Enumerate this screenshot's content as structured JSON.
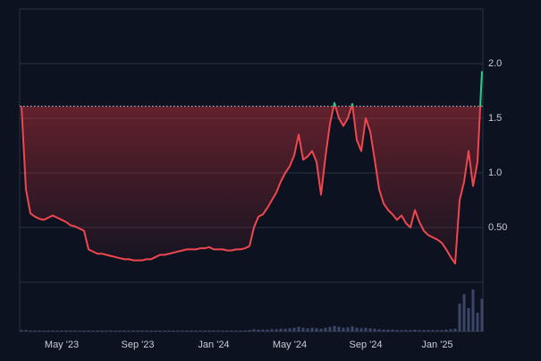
{
  "chart_data": {
    "type": "baseline",
    "categories": [
      null,
      null,
      null,
      null,
      null,
      null,
      null,
      null,
      null,
      "May '23",
      null,
      null,
      null,
      null,
      null,
      null,
      null,
      null,
      null,
      null,
      null,
      null,
      null,
      null,
      null,
      null,
      "Sep '23",
      null,
      null,
      null,
      null,
      null,
      null,
      null,
      null,
      null,
      null,
      null,
      null,
      null,
      null,
      null,
      null,
      "Jan '24",
      null,
      null,
      null,
      null,
      null,
      null,
      null,
      null,
      null,
      null,
      null,
      null,
      null,
      null,
      null,
      null,
      "May '24",
      null,
      null,
      null,
      null,
      null,
      null,
      null,
      null,
      null,
      null,
      null,
      null,
      null,
      null,
      null,
      null,
      "Sep '24",
      null,
      null,
      null,
      null,
      null,
      null,
      null,
      null,
      null,
      null,
      null,
      null,
      null,
      null,
      null,
      "Jan '25",
      null,
      null,
      null,
      null,
      null,
      null,
      null,
      null,
      null,
      null
    ],
    "values": [
      1.61,
      0.85,
      0.63,
      0.6,
      0.58,
      0.57,
      0.59,
      0.61,
      0.59,
      0.57,
      0.55,
      0.52,
      0.51,
      0.49,
      0.47,
      0.3,
      0.28,
      0.26,
      0.26,
      0.25,
      0.24,
      0.23,
      0.22,
      0.21,
      0.21,
      0.2,
      0.2,
      0.2,
      0.21,
      0.21,
      0.23,
      0.25,
      0.25,
      0.26,
      0.27,
      0.28,
      0.29,
      0.3,
      0.3,
      0.3,
      0.31,
      0.31,
      0.32,
      0.3,
      0.3,
      0.3,
      0.29,
      0.29,
      0.3,
      0.3,
      0.31,
      0.33,
      0.5,
      0.6,
      0.62,
      0.68,
      0.75,
      0.82,
      0.92,
      1.0,
      1.06,
      1.16,
      1.35,
      1.12,
      1.15,
      1.2,
      1.1,
      0.8,
      1.15,
      1.45,
      1.64,
      1.5,
      1.43,
      1.5,
      1.63,
      1.3,
      1.2,
      1.5,
      1.38,
      1.12,
      0.85,
      0.72,
      0.66,
      0.62,
      0.57,
      0.61,
      0.54,
      0.5,
      0.66,
      0.55,
      0.47,
      0.43,
      0.41,
      0.39,
      0.36,
      0.3,
      0.23,
      0.17,
      0.75,
      0.92,
      1.2,
      0.88,
      1.1,
      1.93
    ],
    "volume": [
      0.3,
      0.3,
      0.2,
      0.2,
      0.2,
      0.2,
      0.2,
      0.2,
      0.2,
      0.2,
      0.2,
      0.2,
      0.2,
      0.2,
      0.2,
      0.2,
      0.2,
      0.2,
      0.2,
      0.2,
      0.2,
      0.2,
      0.2,
      0.2,
      0.2,
      0.2,
      0.2,
      0.2,
      0.2,
      0.2,
      0.2,
      0.2,
      0.2,
      0.2,
      0.2,
      0.2,
      0.2,
      0.2,
      0.2,
      0.2,
      0.2,
      0.2,
      0.2,
      0.2,
      0.2,
      0.2,
      0.2,
      0.2,
      0.2,
      0.2,
      0.2,
      0.3,
      0.5,
      0.4,
      0.4,
      0.4,
      0.5,
      0.5,
      0.6,
      0.6,
      0.7,
      0.8,
      1.0,
      0.8,
      0.7,
      0.8,
      0.7,
      0.6,
      0.8,
      1.0,
      1.2,
      1.0,
      0.8,
      0.9,
      1.1,
      0.8,
      0.7,
      0.8,
      0.7,
      0.6,
      0.5,
      0.4,
      0.4,
      0.4,
      0.3,
      0.3,
      0.3,
      0.3,
      0.4,
      0.3,
      0.3,
      0.3,
      0.3,
      0.3,
      0.3,
      0.4,
      0.5,
      0.6,
      6,
      8,
      5,
      9,
      4,
      7
    ],
    "vlim": [
      0,
      10
    ],
    "baseline": 1.61,
    "up_color": "#2ecc8a",
    "down_color": "#f0474f",
    "ylim": [
      0,
      2.5
    ],
    "yticks": [
      {
        "value": 0.5,
        "label": "0.50"
      },
      {
        "value": 1,
        "label": "1.0"
      },
      1.5,
      {
        "value": 2,
        "label": "2.0"
      }
    ],
    "grid": true
  }
}
